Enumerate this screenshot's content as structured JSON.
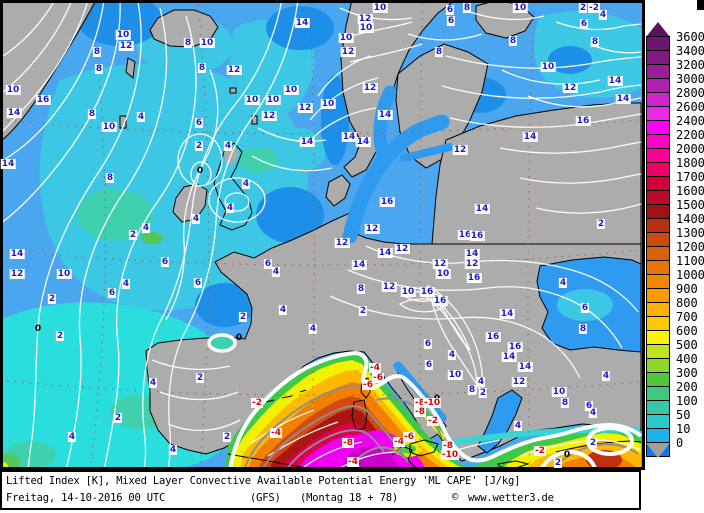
{
  "caption": {
    "line1": "Lifted Index [K], Mixed Layer Convective Available Potential Energy 'ML CAPE' [J/kg]",
    "datetime": "Freitag, 14-10-2016  00 UTC",
    "model": "(GFS)",
    "run": "(Montag 18 + 78)",
    "copyright_symbol": "©",
    "copyright": "www.wetter3.de"
  },
  "colors": {
    "sea_light_blue": "#4BA6F0",
    "sea_cyan": "#3CC8E4",
    "sea_dark_blue": "#1E8FE9",
    "land_gray": "#ACACAC",
    "label_positive": "#1A1ACD",
    "label_negative": "#E00000",
    "date_red": "#CC0000",
    "zero_line_white": "#FFFFFF"
  },
  "scale": {
    "title": "ML CAPE [J/kg]",
    "values": [
      "3600",
      "3400",
      "3200",
      "3000",
      "2800",
      "2600",
      "2400",
      "2200",
      "2000",
      "1800",
      "1700",
      "1600",
      "1500",
      "1400",
      "1300",
      "1200",
      "1100",
      "1000",
      "900",
      "800",
      "700",
      "600",
      "500",
      "400",
      "300",
      "200",
      "100",
      "50",
      "10",
      "0"
    ],
    "cell_colors": [
      "#6E156E",
      "#821982",
      "#9A1D9A",
      "#B321B3",
      "#CC25CC",
      "#E829E8",
      "#FF00FF",
      "#FF00C8",
      "#FF0096",
      "#EE0066",
      "#D2003A",
      "#BC0B28",
      "#9E1212",
      "#B93011",
      "#CB4A0D",
      "#DC5F09",
      "#EA7305",
      "#F48702",
      "#FB9B00",
      "#FFB000",
      "#FFC800",
      "#FAF500",
      "#C0E41C",
      "#8CD826",
      "#50C83C",
      "#3EC87E",
      "#34C8A6",
      "#2AC8C8",
      "#1CB4E8",
      "#0A78EF"
    ],
    "arrow_top_color": "#5E1060",
    "arrow_bottom_color": "#A0A0A0"
  },
  "map": {
    "contour_labels": [
      [
        123,
        35,
        "10",
        "b"
      ],
      [
        126,
        46,
        "12",
        "b"
      ],
      [
        97,
        52,
        "8",
        "b"
      ],
      [
        99,
        69,
        "8",
        "b"
      ],
      [
        188,
        43,
        "8",
        "b"
      ],
      [
        207,
        43,
        "10",
        "b"
      ],
      [
        302,
        23,
        "14",
        "b"
      ],
      [
        234,
        70,
        "12",
        "b"
      ],
      [
        202,
        68,
        "8",
        "b"
      ],
      [
        13,
        90,
        "10",
        "b"
      ],
      [
        43,
        100,
        "16",
        "b"
      ],
      [
        14,
        113,
        "14",
        "b"
      ],
      [
        252,
        100,
        "10",
        "b"
      ],
      [
        273,
        100,
        "10",
        "b"
      ],
      [
        269,
        116,
        "12",
        "b"
      ],
      [
        291,
        90,
        "10",
        "b"
      ],
      [
        305,
        108,
        "12",
        "b"
      ],
      [
        307,
        142,
        "14",
        "b"
      ],
      [
        92,
        114,
        "8",
        "b"
      ],
      [
        109,
        127,
        "10",
        "b"
      ],
      [
        141,
        117,
        "4",
        "b"
      ],
      [
        199,
        123,
        "6",
        "b"
      ],
      [
        199,
        146,
        "2",
        "b"
      ],
      [
        228,
        146,
        "4",
        "b"
      ],
      [
        246,
        184,
        "4",
        "b"
      ],
      [
        110,
        178,
        "8",
        "b"
      ],
      [
        8,
        164,
        "14",
        "b"
      ],
      [
        230,
        208,
        "4",
        "b"
      ],
      [
        196,
        219,
        "4",
        "b"
      ],
      [
        146,
        228,
        "4",
        "b"
      ],
      [
        133,
        235,
        "2",
        "b"
      ],
      [
        380,
        8,
        "10",
        "b"
      ],
      [
        365,
        19,
        "12",
        "b"
      ],
      [
        366,
        28,
        "10",
        "b"
      ],
      [
        450,
        10,
        "6",
        "b"
      ],
      [
        467,
        8,
        "8",
        "b"
      ],
      [
        520,
        8,
        "10",
        "b"
      ],
      [
        583,
        8,
        "2",
        "b"
      ],
      [
        594,
        8,
        "-2",
        "b"
      ],
      [
        603,
        15,
        "4",
        "b"
      ],
      [
        584,
        24,
        "6",
        "b"
      ],
      [
        595,
        42,
        "8",
        "b"
      ],
      [
        513,
        41,
        "8",
        "b"
      ],
      [
        451,
        21,
        "6",
        "b"
      ],
      [
        346,
        38,
        "10",
        "b"
      ],
      [
        348,
        52,
        "12",
        "b"
      ],
      [
        439,
        52,
        "8",
        "b"
      ],
      [
        548,
        67,
        "10",
        "b"
      ],
      [
        570,
        88,
        "12",
        "b"
      ],
      [
        615,
        81,
        "14",
        "b"
      ],
      [
        623,
        99,
        "14",
        "b"
      ],
      [
        583,
        121,
        "16",
        "b"
      ],
      [
        370,
        88,
        "12",
        "b"
      ],
      [
        385,
        115,
        "14",
        "b"
      ],
      [
        349,
        137,
        "14",
        "b"
      ],
      [
        363,
        142,
        "14",
        "b"
      ],
      [
        328,
        104,
        "10",
        "b"
      ],
      [
        530,
        137,
        "14",
        "b"
      ],
      [
        460,
        150,
        "12",
        "b"
      ],
      [
        387,
        202,
        "16",
        "b"
      ],
      [
        482,
        209,
        "14",
        "b"
      ],
      [
        601,
        224,
        "2",
        "b"
      ],
      [
        372,
        229,
        "12",
        "b"
      ],
      [
        465,
        235,
        "16",
        "b"
      ],
      [
        477,
        236,
        "16",
        "b"
      ],
      [
        17,
        254,
        "14",
        "b"
      ],
      [
        17,
        274,
        "12",
        "b"
      ],
      [
        64,
        274,
        "10",
        "b"
      ],
      [
        52,
        299,
        "2",
        "b"
      ],
      [
        112,
        293,
        "6",
        "b"
      ],
      [
        126,
        284,
        "4",
        "b"
      ],
      [
        165,
        262,
        "6",
        "b"
      ],
      [
        198,
        283,
        "6",
        "b"
      ],
      [
        268,
        264,
        "6",
        "b"
      ],
      [
        276,
        272,
        "4",
        "b"
      ],
      [
        283,
        310,
        "4",
        "b"
      ],
      [
        313,
        329,
        "4",
        "b"
      ],
      [
        60,
        336,
        "2",
        "b"
      ],
      [
        243,
        317,
        "2",
        "b"
      ],
      [
        153,
        383,
        "4",
        "b"
      ],
      [
        200,
        378,
        "2",
        "b"
      ],
      [
        118,
        418,
        "2",
        "b"
      ],
      [
        72,
        437,
        "4",
        "b"
      ],
      [
        173,
        450,
        "4",
        "b"
      ],
      [
        227,
        437,
        "2",
        "b"
      ],
      [
        342,
        243,
        "12",
        "b"
      ],
      [
        359,
        265,
        "14",
        "b"
      ],
      [
        385,
        253,
        "14",
        "b"
      ],
      [
        402,
        249,
        "12",
        "b"
      ],
      [
        440,
        264,
        "12",
        "b"
      ],
      [
        443,
        274,
        "10",
        "b"
      ],
      [
        472,
        254,
        "14",
        "b"
      ],
      [
        472,
        264,
        "12",
        "b"
      ],
      [
        474,
        278,
        "16",
        "b"
      ],
      [
        361,
        289,
        "8",
        "b"
      ],
      [
        389,
        287,
        "12",
        "b"
      ],
      [
        408,
        292,
        "10",
        "b"
      ],
      [
        427,
        292,
        "16",
        "b"
      ],
      [
        440,
        301,
        "16",
        "b"
      ],
      [
        507,
        314,
        "14",
        "b"
      ],
      [
        363,
        311,
        "2",
        "b"
      ],
      [
        563,
        283,
        "4",
        "b"
      ],
      [
        585,
        308,
        "6",
        "b"
      ],
      [
        583,
        329,
        "8",
        "b"
      ],
      [
        493,
        337,
        "16",
        "b"
      ],
      [
        515,
        347,
        "16",
        "b"
      ],
      [
        509,
        357,
        "14",
        "b"
      ],
      [
        525,
        367,
        "14",
        "b"
      ],
      [
        519,
        382,
        "12",
        "b"
      ],
      [
        559,
        392,
        "10",
        "b"
      ],
      [
        565,
        403,
        "8",
        "b"
      ],
      [
        589,
        406,
        "6",
        "b"
      ],
      [
        593,
        413,
        "4",
        "b"
      ],
      [
        606,
        376,
        "4",
        "b"
      ],
      [
        593,
        443,
        "2",
        "b"
      ],
      [
        558,
        463,
        "2",
        "b"
      ],
      [
        518,
        426,
        "4",
        "b"
      ],
      [
        428,
        344,
        "6",
        "b"
      ],
      [
        429,
        365,
        "6",
        "b"
      ],
      [
        455,
        375,
        "10",
        "b"
      ],
      [
        452,
        355,
        "4",
        "b"
      ],
      [
        481,
        382,
        "4",
        "b"
      ],
      [
        472,
        390,
        "8",
        "b"
      ],
      [
        483,
        393,
        "2",
        "b"
      ],
      [
        200,
        171,
        "0",
        "k"
      ],
      [
        38,
        329,
        "0",
        "k"
      ],
      [
        239,
        338,
        "0",
        "k"
      ],
      [
        437,
        399,
        "0",
        "k"
      ],
      [
        567,
        455,
        "0",
        "k"
      ],
      [
        257,
        403,
        "-2",
        "r"
      ],
      [
        276,
        433,
        "-4",
        "r"
      ],
      [
        540,
        451,
        "-2",
        "r"
      ],
      [
        433,
        421,
        "-2",
        "r"
      ],
      [
        448,
        446,
        "-8",
        "r"
      ],
      [
        450,
        455,
        "-10",
        "r"
      ],
      [
        399,
        442,
        "-4",
        "r"
      ],
      [
        409,
        437,
        "-6",
        "r"
      ],
      [
        368,
        385,
        "-6",
        "r"
      ],
      [
        375,
        368,
        "-4",
        "r"
      ],
      [
        378,
        378,
        "-6",
        "r"
      ],
      [
        420,
        403,
        "-8",
        "r"
      ],
      [
        432,
        403,
        "-10",
        "r"
      ],
      [
        420,
        412,
        "-8",
        "r"
      ],
      [
        348,
        443,
        "-8",
        "r"
      ],
      [
        353,
        462,
        "-4",
        "r"
      ]
    ]
  }
}
